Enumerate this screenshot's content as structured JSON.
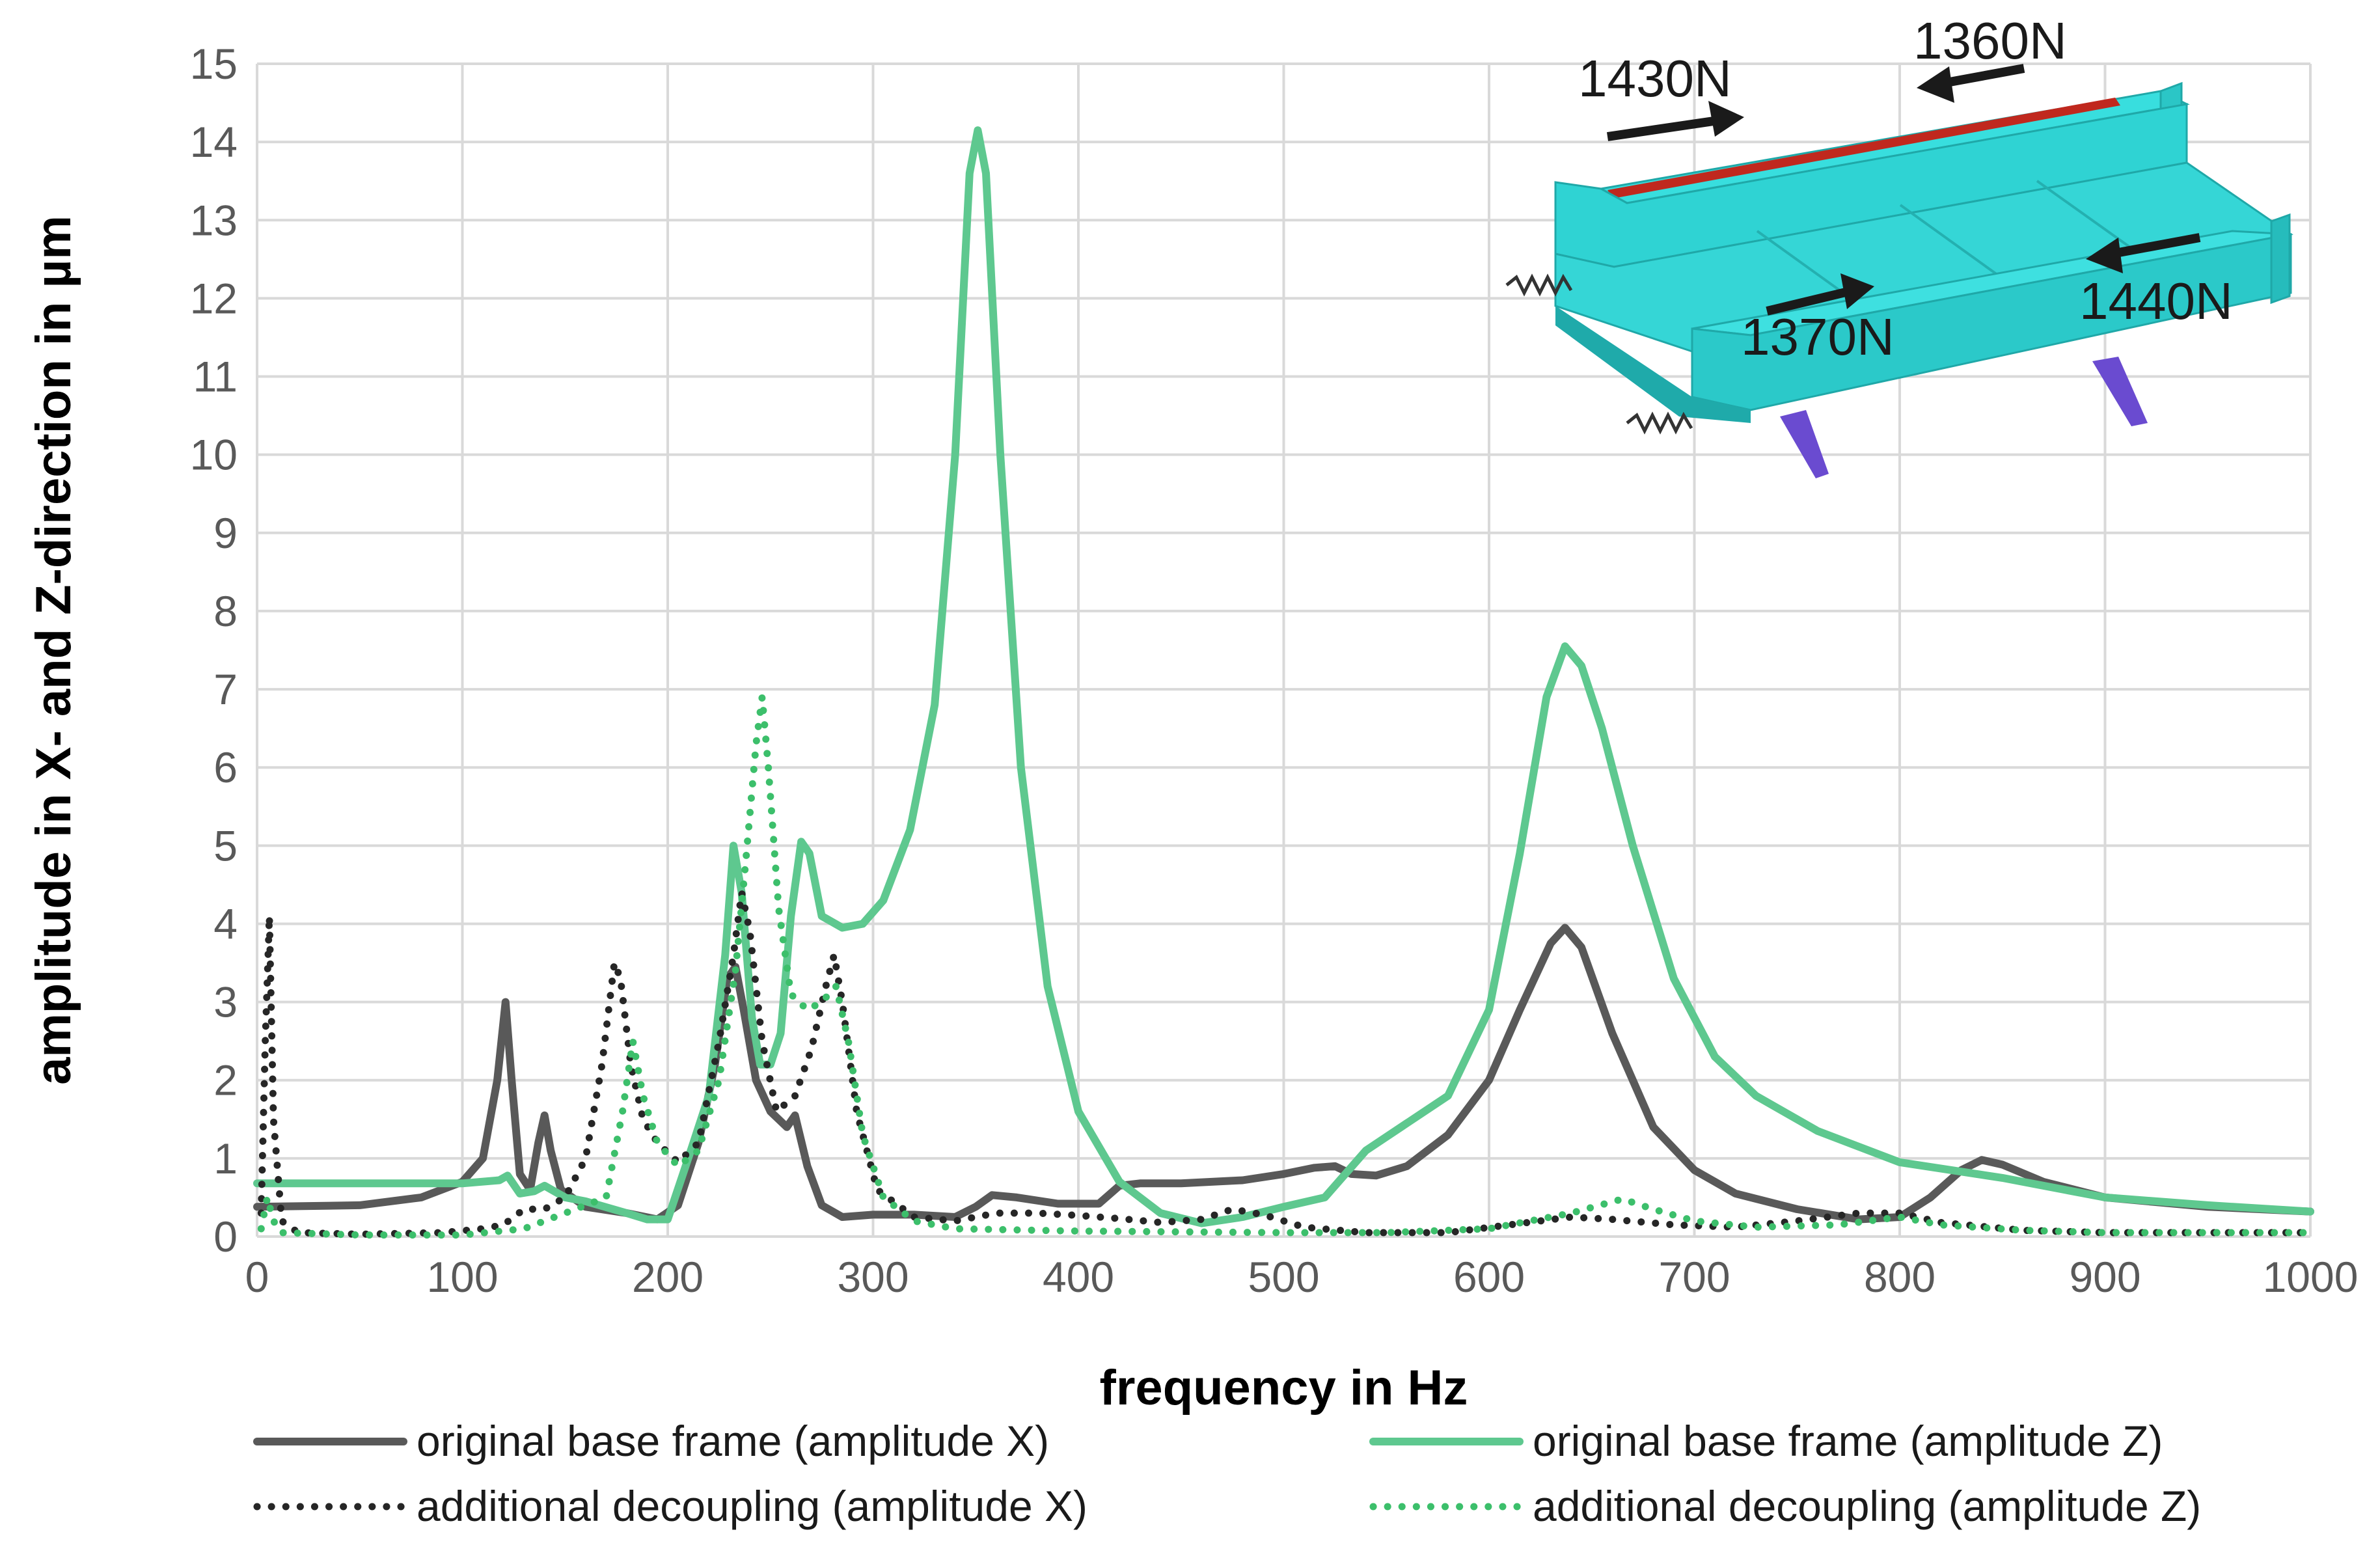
{
  "chart_data": {
    "type": "line",
    "title": "",
    "xlabel": "frequency in Hz",
    "ylabel": "amplitude in X- and Z-direction in µm",
    "xlim": [
      0,
      1000
    ],
    "ylim": [
      0,
      15
    ],
    "x_ticks": [
      0,
      100,
      200,
      300,
      400,
      500,
      600,
      700,
      800,
      900,
      1000
    ],
    "y_ticks": [
      0,
      1,
      2,
      3,
      4,
      5,
      6,
      7,
      8,
      9,
      10,
      11,
      12,
      13,
      14,
      15
    ],
    "grid": true,
    "legend_position": "bottom",
    "series": [
      {
        "name": "original base frame (amplitude X)",
        "color": "#595959",
        "style": "solid",
        "points": [
          [
            0,
            0.38
          ],
          [
            50,
            0.4
          ],
          [
            80,
            0.5
          ],
          [
            100,
            0.7
          ],
          [
            110,
            1.0
          ],
          [
            117,
            2.0
          ],
          [
            121,
            3.0
          ],
          [
            124,
            2.0
          ],
          [
            128,
            0.8
          ],
          [
            133,
            0.6
          ],
          [
            137,
            1.2
          ],
          [
            140,
            1.55
          ],
          [
            143,
            1.1
          ],
          [
            148,
            0.6
          ],
          [
            160,
            0.38
          ],
          [
            180,
            0.3
          ],
          [
            195,
            0.22
          ],
          [
            205,
            0.4
          ],
          [
            215,
            1.2
          ],
          [
            223,
            2.2
          ],
          [
            229,
            3.3
          ],
          [
            233,
            3.45
          ],
          [
            237,
            2.9
          ],
          [
            243,
            2.0
          ],
          [
            250,
            1.6
          ],
          [
            258,
            1.4
          ],
          [
            262,
            1.55
          ],
          [
            268,
            0.9
          ],
          [
            275,
            0.4
          ],
          [
            285,
            0.25
          ],
          [
            300,
            0.28
          ],
          [
            320,
            0.28
          ],
          [
            340,
            0.25
          ],
          [
            350,
            0.38
          ],
          [
            358,
            0.53
          ],
          [
            370,
            0.5
          ],
          [
            390,
            0.42
          ],
          [
            410,
            0.42
          ],
          [
            420,
            0.65
          ],
          [
            430,
            0.68
          ],
          [
            450,
            0.68
          ],
          [
            480,
            0.72
          ],
          [
            500,
            0.8
          ],
          [
            515,
            0.88
          ],
          [
            525,
            0.9
          ],
          [
            533,
            0.8
          ],
          [
            545,
            0.78
          ],
          [
            560,
            0.9
          ],
          [
            580,
            1.3
          ],
          [
            600,
            2.0
          ],
          [
            615,
            2.9
          ],
          [
            630,
            3.75
          ],
          [
            637,
            3.95
          ],
          [
            645,
            3.7
          ],
          [
            660,
            2.6
          ],
          [
            680,
            1.4
          ],
          [
            700,
            0.85
          ],
          [
            720,
            0.55
          ],
          [
            750,
            0.35
          ],
          [
            780,
            0.22
          ],
          [
            800,
            0.25
          ],
          [
            815,
            0.5
          ],
          [
            830,
            0.85
          ],
          [
            840,
            0.98
          ],
          [
            850,
            0.92
          ],
          [
            870,
            0.7
          ],
          [
            900,
            0.5
          ],
          [
            950,
            0.38
          ],
          [
            1000,
            0.32
          ]
        ]
      },
      {
        "name": "original base frame (amplitude Z)",
        "color": "#5ec88f",
        "style": "solid",
        "points": [
          [
            0,
            0.68
          ],
          [
            50,
            0.68
          ],
          [
            100,
            0.68
          ],
          [
            118,
            0.72
          ],
          [
            122,
            0.78
          ],
          [
            128,
            0.55
          ],
          [
            135,
            0.58
          ],
          [
            140,
            0.65
          ],
          [
            150,
            0.5
          ],
          [
            160,
            0.45
          ],
          [
            180,
            0.3
          ],
          [
            190,
            0.22
          ],
          [
            200,
            0.22
          ],
          [
            210,
            1.0
          ],
          [
            220,
            1.8
          ],
          [
            228,
            3.6
          ],
          [
            232,
            5.0
          ],
          [
            236,
            4.4
          ],
          [
            241,
            2.8
          ],
          [
            245,
            2.2
          ],
          [
            250,
            2.2
          ],
          [
            255,
            2.6
          ],
          [
            260,
            4.1
          ],
          [
            265,
            5.05
          ],
          [
            269,
            4.9
          ],
          [
            275,
            4.1
          ],
          [
            285,
            3.95
          ],
          [
            295,
            4.0
          ],
          [
            305,
            4.3
          ],
          [
            318,
            5.2
          ],
          [
            330,
            6.8
          ],
          [
            340,
            10.0
          ],
          [
            347,
            13.6
          ],
          [
            351,
            14.15
          ],
          [
            355,
            13.6
          ],
          [
            362,
            10.0
          ],
          [
            372,
            6.0
          ],
          [
            385,
            3.2
          ],
          [
            400,
            1.6
          ],
          [
            420,
            0.7
          ],
          [
            440,
            0.3
          ],
          [
            460,
            0.17
          ],
          [
            480,
            0.25
          ],
          [
            500,
            0.38
          ],
          [
            520,
            0.5
          ],
          [
            540,
            1.1
          ],
          [
            560,
            1.45
          ],
          [
            580,
            1.8
          ],
          [
            600,
            2.9
          ],
          [
            615,
            4.9
          ],
          [
            628,
            6.9
          ],
          [
            637,
            7.55
          ],
          [
            645,
            7.3
          ],
          [
            655,
            6.5
          ],
          [
            670,
            5.0
          ],
          [
            690,
            3.3
          ],
          [
            710,
            2.3
          ],
          [
            730,
            1.8
          ],
          [
            760,
            1.35
          ],
          [
            800,
            0.95
          ],
          [
            850,
            0.75
          ],
          [
            900,
            0.5
          ],
          [
            950,
            0.4
          ],
          [
            1000,
            0.32
          ]
        ]
      },
      {
        "name": "additional decoupling (amplitude X)",
        "color": "#262626",
        "style": "dotted",
        "points": [
          [
            2,
            0.3
          ],
          [
            4,
            2.5
          ],
          [
            6,
            4.1
          ],
          [
            8,
            1.5
          ],
          [
            12,
            0.2
          ],
          [
            20,
            0.05
          ],
          [
            50,
            0.03
          ],
          [
            90,
            0.05
          ],
          [
            110,
            0.1
          ],
          [
            120,
            0.15
          ],
          [
            130,
            0.35
          ],
          [
            140,
            0.35
          ],
          [
            150,
            0.5
          ],
          [
            160,
            1.0
          ],
          [
            168,
            2.2
          ],
          [
            174,
            3.5
          ],
          [
            177,
            3.3
          ],
          [
            182,
            2.2
          ],
          [
            188,
            1.5
          ],
          [
            195,
            1.2
          ],
          [
            205,
            0.95
          ],
          [
            215,
            1.2
          ],
          [
            225,
            2.5
          ],
          [
            232,
            3.6
          ],
          [
            236,
            4.4
          ],
          [
            240,
            3.9
          ],
          [
            246,
            2.5
          ],
          [
            253,
            1.6
          ],
          [
            262,
            1.8
          ],
          [
            270,
            2.4
          ],
          [
            277,
            3.2
          ],
          [
            281,
            3.6
          ],
          [
            285,
            3.0
          ],
          [
            292,
            1.6
          ],
          [
            302,
            0.6
          ],
          [
            320,
            0.25
          ],
          [
            340,
            0.2
          ],
          [
            360,
            0.3
          ],
          [
            380,
            0.3
          ],
          [
            400,
            0.27
          ],
          [
            420,
            0.23
          ],
          [
            440,
            0.18
          ],
          [
            460,
            0.22
          ],
          [
            475,
            0.35
          ],
          [
            490,
            0.28
          ],
          [
            510,
            0.12
          ],
          [
            540,
            0.05
          ],
          [
            580,
            0.05
          ],
          [
            610,
            0.15
          ],
          [
            640,
            0.25
          ],
          [
            660,
            0.22
          ],
          [
            690,
            0.15
          ],
          [
            720,
            0.12
          ],
          [
            750,
            0.2
          ],
          [
            780,
            0.3
          ],
          [
            800,
            0.3
          ],
          [
            820,
            0.18
          ],
          [
            860,
            0.08
          ],
          [
            900,
            0.05
          ],
          [
            1000,
            0.05
          ]
        ]
      },
      {
        "name": "additional decoupling (amplitude Z)",
        "color": "#3cbf6b",
        "style": "dotted",
        "points": [
          [
            2,
            0.1
          ],
          [
            5,
            0.5
          ],
          [
            8,
            0.2
          ],
          [
            12,
            0.05
          ],
          [
            50,
            0.02
          ],
          [
            100,
            0.02
          ],
          [
            130,
            0.1
          ],
          [
            150,
            0.3
          ],
          [
            170,
            0.5
          ],
          [
            178,
            1.6
          ],
          [
            183,
            2.5
          ],
          [
            188,
            1.8
          ],
          [
            195,
            1.2
          ],
          [
            205,
            0.9
          ],
          [
            215,
            1.1
          ],
          [
            225,
            2.0
          ],
          [
            233,
            3.4
          ],
          [
            238,
            4.8
          ],
          [
            243,
            6.3
          ],
          [
            246,
            6.9
          ],
          [
            249,
            6.0
          ],
          [
            254,
            4.2
          ],
          [
            260,
            3.1
          ],
          [
            268,
            2.9
          ],
          [
            275,
            3.0
          ],
          [
            282,
            3.2
          ],
          [
            288,
            2.5
          ],
          [
            295,
            1.3
          ],
          [
            305,
            0.5
          ],
          [
            320,
            0.2
          ],
          [
            340,
            0.1
          ],
          [
            400,
            0.07
          ],
          [
            450,
            0.06
          ],
          [
            500,
            0.05
          ],
          [
            550,
            0.05
          ],
          [
            600,
            0.1
          ],
          [
            640,
            0.3
          ],
          [
            665,
            0.48
          ],
          [
            680,
            0.35
          ],
          [
            700,
            0.2
          ],
          [
            730,
            0.12
          ],
          [
            770,
            0.15
          ],
          [
            800,
            0.25
          ],
          [
            820,
            0.15
          ],
          [
            860,
            0.08
          ],
          [
            900,
            0.05
          ],
          [
            1000,
            0.05
          ]
        ]
      }
    ]
  },
  "inset": {
    "icon": "machine-base-frame-fe-model-icon",
    "forces": {
      "f1": "1430N",
      "f2": "1360N",
      "f3": "1370N",
      "f4": "1440N"
    }
  },
  "colors": {
    "grid": "#d9d9d9",
    "frame_cyan": "#2fd3d3",
    "rail_red": "#c0281e",
    "leg_purple": "#6a4bd0"
  }
}
